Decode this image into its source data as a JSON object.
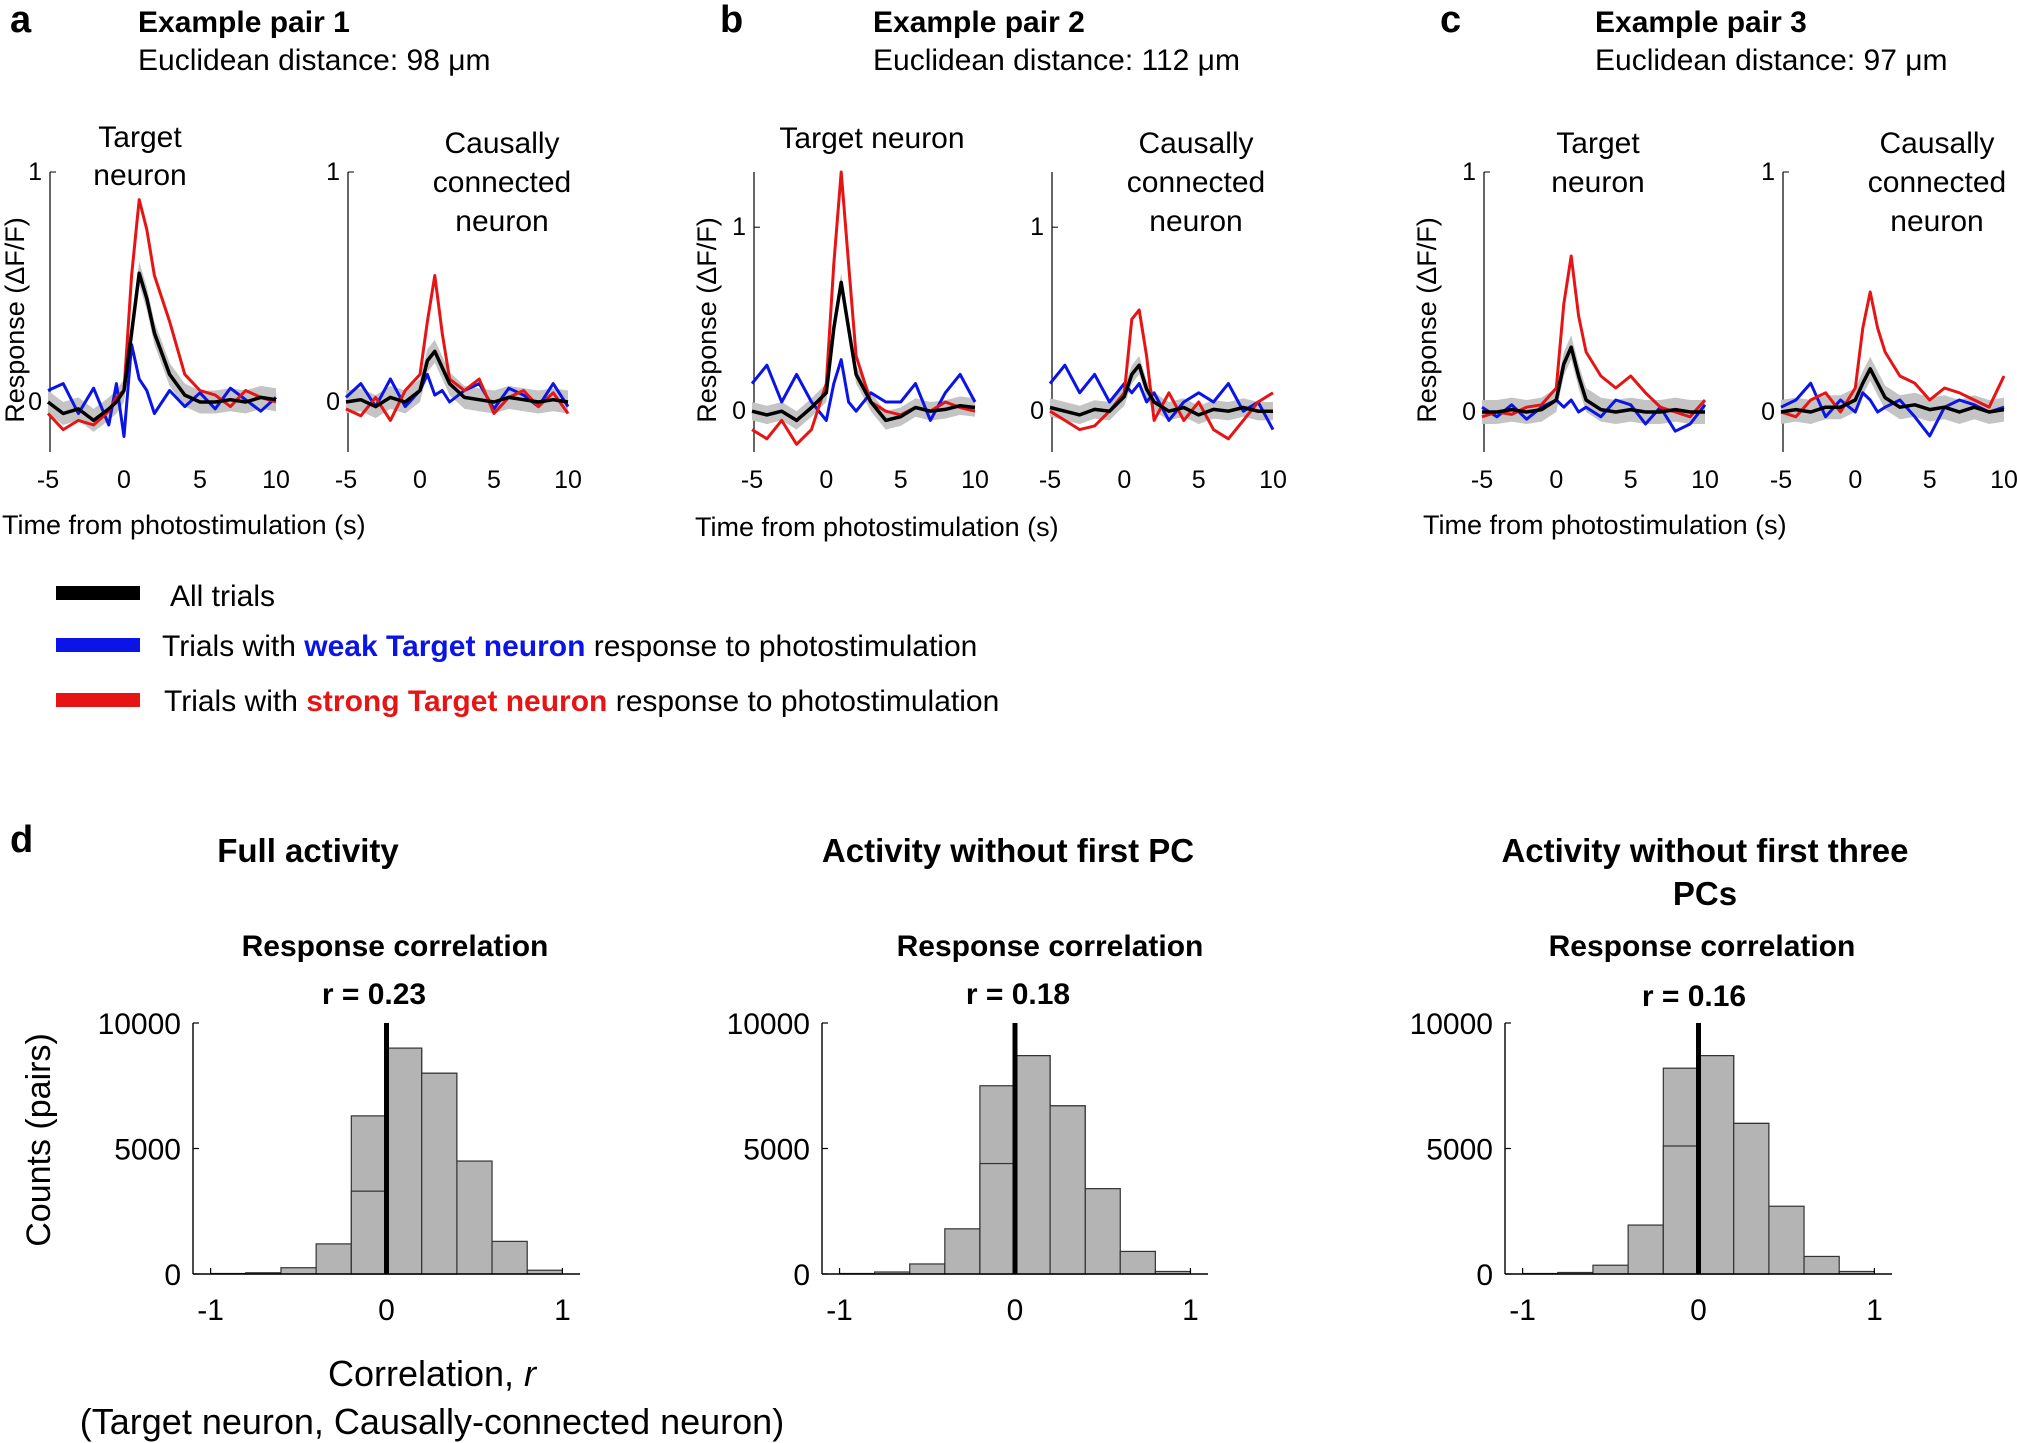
{
  "colors": {
    "all": "#000000",
    "weak": "#0a14e6",
    "strong": "#e61414",
    "band": "#c4c4c4",
    "bar": "#b4b4b4"
  },
  "panels": [
    {
      "label": "a",
      "title": "Example pair 1",
      "distance": "Euclidean  distance: 98 μm",
      "target_title": [
        "Target",
        "neuron"
      ],
      "causal_title": [
        "Causally",
        "connected",
        "neuron"
      ]
    },
    {
      "label": "b",
      "title": "Example pair 2",
      "distance": "Euclidean  distance: 112 μm",
      "target_title": [
        "Target neuron"
      ],
      "causal_title": [
        "Causally",
        "connected",
        "neuron"
      ]
    },
    {
      "label": "c",
      "title": "Example pair 3",
      "distance": "Euclidean  distance: 97 μm",
      "target_title": [
        "Target",
        "neuron"
      ],
      "causal_title": [
        "Causally",
        "connected",
        "neuron"
      ]
    }
  ],
  "trace_axes": {
    "ylabel": "Response (ΔF/F)",
    "xlabel": "Time from photostimulation (s)",
    "x_ticks": [
      "-5",
      "0",
      "5",
      "10"
    ],
    "xlim": [
      -5,
      10
    ]
  },
  "legend": {
    "all": "All trials",
    "weak_pre": "Trials with ",
    "weak_hl": "weak Target neuron",
    "weak_post": " response to photostimulation",
    "strong_pre": "Trials with ",
    "strong_hl": "strong Target neuron",
    "strong_post": " response to photostimulation"
  },
  "panel_d": {
    "label": "d",
    "ylabel": "Counts (pairs)",
    "xlabel_line1": "Correlation, ",
    "xlabel_r": "r",
    "xlabel_line2": "(Target neuron, Causally-connected neuron)"
  },
  "chart_data": [
    {
      "type": "line",
      "panel": "a",
      "subplot": "Target neuron",
      "ylim": [
        -0.2,
        1.0
      ],
      "y_ticks": [
        "0",
        "1"
      ],
      "series": [
        {
          "name": "All trials",
          "x": [
            -5,
            -4,
            -3,
            -2,
            -1,
            -0.5,
            0,
            0.5,
            1,
            1.5,
            2,
            3,
            4,
            5,
            6,
            7,
            8,
            9,
            10
          ],
          "y": [
            0,
            -0.05,
            -0.03,
            -0.08,
            -0.03,
            0,
            0.05,
            0.3,
            0.56,
            0.45,
            0.3,
            0.12,
            0.03,
            0,
            0,
            0.01,
            0,
            0.02,
            0.01
          ]
        },
        {
          "name": "Weak trials",
          "x": [
            -5,
            -4,
            -3,
            -2,
            -1,
            -0.5,
            0,
            0.5,
            1,
            1.5,
            2,
            3,
            4,
            5,
            6,
            7,
            8,
            9,
            10
          ],
          "y": [
            0.05,
            0.08,
            -0.05,
            0.06,
            -0.1,
            0.08,
            -0.15,
            0.25,
            0.1,
            0.05,
            -0.05,
            0.05,
            -0.02,
            0.04,
            -0.03,
            0.06,
            0.01,
            -0.04,
            0.02
          ]
        },
        {
          "name": "Strong trials",
          "x": [
            -5,
            -4,
            -3,
            -2,
            -1,
            -0.5,
            0,
            0.5,
            1,
            1.5,
            2,
            3,
            4,
            5,
            6,
            7,
            8,
            9,
            10
          ],
          "y": [
            -0.05,
            -0.12,
            -0.08,
            -0.1,
            -0.04,
            0.02,
            0.05,
            0.55,
            0.88,
            0.75,
            0.55,
            0.35,
            0.12,
            0.05,
            0.03,
            -0.02,
            0.05,
            0.02,
            0
          ]
        }
      ]
    },
    {
      "type": "line",
      "panel": "a",
      "subplot": "Causally connected neuron",
      "ylim": [
        -0.2,
        1.0
      ],
      "y_ticks": [
        "0",
        "1"
      ],
      "series": [
        {
          "name": "All trials",
          "x": [
            -5,
            -4,
            -3,
            -2,
            -1,
            0,
            0.5,
            1,
            1.5,
            2,
            3,
            4,
            5,
            6,
            7,
            8,
            9,
            10
          ],
          "y": [
            0,
            0.01,
            -0.02,
            0.02,
            0,
            0.05,
            0.18,
            0.22,
            0.15,
            0.08,
            0.02,
            0.01,
            0,
            0.02,
            0.01,
            0,
            0.01,
            0
          ]
        },
        {
          "name": "Weak trials",
          "x": [
            -5,
            -4,
            -3,
            -2,
            -1,
            0,
            0.5,
            1,
            1.5,
            2,
            3,
            4,
            5,
            6,
            7,
            8,
            9,
            10
          ],
          "y": [
            0.02,
            0.08,
            -0.02,
            0.1,
            -0.02,
            0.05,
            0.12,
            0.03,
            0.05,
            0,
            0.05,
            0.08,
            -0.03,
            0.06,
            0.03,
            -0.02,
            0.08,
            -0.02
          ]
        },
        {
          "name": "Strong trials",
          "x": [
            -5,
            -4,
            -3,
            -2,
            -1,
            0,
            0.5,
            1,
            1.5,
            2,
            3,
            4,
            5,
            6,
            7,
            8,
            9,
            10
          ],
          "y": [
            -0.03,
            -0.06,
            0.02,
            -0.08,
            0.05,
            0.12,
            0.35,
            0.55,
            0.3,
            0.1,
            0.05,
            0.1,
            -0.05,
            0.02,
            0.05,
            -0.02,
            0.04,
            -0.05
          ]
        }
      ]
    },
    {
      "type": "line",
      "panel": "b",
      "subplot": "Target neuron",
      "ylim": [
        -0.2,
        1.3
      ],
      "y_ticks": [
        "0",
        "1"
      ],
      "series": [
        {
          "name": "All trials",
          "x": [
            -5,
            -4,
            -3,
            -2,
            -1,
            0,
            0.5,
            1,
            1.5,
            2,
            3,
            4,
            5,
            6,
            7,
            8,
            9,
            10
          ],
          "y": [
            0,
            -0.02,
            0,
            -0.05,
            0.02,
            0.1,
            0.45,
            0.7,
            0.45,
            0.2,
            0.05,
            -0.05,
            -0.03,
            0.02,
            0,
            0.01,
            0.03,
            0.02
          ]
        },
        {
          "name": "Weak trials",
          "x": [
            -5,
            -4,
            -3,
            -2,
            -1,
            0,
            0.5,
            1,
            1.5,
            2,
            3,
            4,
            5,
            6,
            7,
            8,
            9,
            10
          ],
          "y": [
            0.15,
            0.25,
            0.05,
            0.2,
            0.05,
            -0.05,
            0.15,
            0.28,
            0.05,
            0,
            0.1,
            0.05,
            0.05,
            0.15,
            -0.05,
            0.1,
            0.2,
            0.05
          ]
        },
        {
          "name": "Strong trials",
          "x": [
            -5,
            -4,
            -3,
            -2,
            -1,
            0,
            0.5,
            1,
            1.5,
            2,
            3,
            4,
            5,
            6,
            7,
            8,
            9,
            10
          ],
          "y": [
            -0.1,
            -0.15,
            -0.05,
            -0.18,
            -0.1,
            0.15,
            0.8,
            1.3,
            0.8,
            0.3,
            0.05,
            0,
            -0.02,
            0.02,
            0,
            0.05,
            0.02,
            0
          ]
        }
      ]
    },
    {
      "type": "line",
      "panel": "b",
      "subplot": "Causally connected neuron",
      "ylim": [
        -0.2,
        1.3
      ],
      "y_ticks": [
        "0",
        "1"
      ],
      "series": [
        {
          "name": "All trials",
          "x": [
            -5,
            -4,
            -3,
            -2,
            -1,
            0,
            0.5,
            1,
            1.5,
            2,
            3,
            4,
            5,
            6,
            7,
            8,
            9,
            10
          ],
          "y": [
            0.02,
            0,
            -0.02,
            0.01,
            0,
            0.08,
            0.2,
            0.25,
            0.12,
            0.05,
            0,
            0.02,
            -0.02,
            0.01,
            0,
            0.02,
            0,
            0
          ]
        },
        {
          "name": "Weak trials",
          "x": [
            -5,
            -4,
            -3,
            -2,
            -1,
            0,
            0.5,
            1,
            1.5,
            2,
            3,
            4,
            5,
            6,
            7,
            8,
            9,
            10
          ],
          "y": [
            0.15,
            0.25,
            0.1,
            0.2,
            0.05,
            0.15,
            0.1,
            0.15,
            0.05,
            0.1,
            -0.05,
            0.05,
            0.1,
            0.05,
            0.15,
            0,
            0.05,
            -0.1
          ]
        },
        {
          "name": "Strong trials",
          "x": [
            -5,
            -4,
            -3,
            -2,
            -1,
            0,
            0.5,
            1,
            1.5,
            2,
            3,
            4,
            5,
            6,
            7,
            8,
            9,
            10
          ],
          "y": [
            0,
            -0.05,
            -0.1,
            -0.08,
            0,
            0.1,
            0.5,
            0.55,
            0.3,
            -0.05,
            0.1,
            -0.05,
            0.05,
            -0.1,
            -0.15,
            -0.05,
            0.05,
            0.1
          ]
        }
      ]
    },
    {
      "type": "line",
      "panel": "c",
      "subplot": "Target neuron",
      "ylim": [
        -0.15,
        1.0
      ],
      "y_ticks": [
        "0",
        "1"
      ],
      "series": [
        {
          "name": "All trials",
          "x": [
            -5,
            -4,
            -3,
            -2,
            -1,
            0,
            0.5,
            1,
            1.5,
            2,
            3,
            4,
            5,
            6,
            7,
            8,
            9,
            10
          ],
          "y": [
            0,
            0,
            0.01,
            0,
            0.01,
            0.05,
            0.2,
            0.27,
            0.15,
            0.05,
            0.01,
            0,
            0.01,
            0,
            0,
            0.01,
            0,
            0
          ]
        },
        {
          "name": "Weak trials",
          "x": [
            -5,
            -4,
            -3,
            -2,
            -1,
            0,
            0.5,
            1,
            1.5,
            2,
            3,
            4,
            5,
            6,
            7,
            8,
            9,
            10
          ],
          "y": [
            0.02,
            -0.02,
            0.03,
            -0.03,
            0.02,
            0.05,
            0.02,
            0.05,
            0,
            0.02,
            -0.02,
            0.05,
            0.03,
            -0.05,
            0.02,
            -0.08,
            -0.05,
            0.03
          ]
        },
        {
          "name": "Strong trials",
          "x": [
            -5,
            -4,
            -3,
            -2,
            -1,
            0,
            0.5,
            1,
            1.5,
            2,
            3,
            4,
            5,
            6,
            7,
            8,
            9,
            10
          ],
          "y": [
            -0.02,
            0,
            -0.01,
            0.02,
            0.03,
            0.1,
            0.45,
            0.65,
            0.4,
            0.25,
            0.15,
            0.1,
            0.15,
            0.08,
            0.02,
            0,
            -0.02,
            0.05
          ]
        }
      ]
    },
    {
      "type": "line",
      "panel": "c",
      "subplot": "Causally connected neuron",
      "ylim": [
        -0.15,
        1.0
      ],
      "y_ticks": [
        "0",
        "1"
      ],
      "series": [
        {
          "name": "All trials",
          "x": [
            -5,
            -4,
            -3,
            -2,
            -1,
            0,
            0.5,
            1,
            1.5,
            2,
            3,
            4,
            5,
            6,
            7,
            8,
            9,
            10
          ],
          "y": [
            0,
            0.01,
            0,
            0.02,
            0.02,
            0.05,
            0.12,
            0.18,
            0.12,
            0.06,
            0.02,
            0.03,
            0.01,
            0.02,
            0,
            0.02,
            0,
            0.01
          ]
        },
        {
          "name": "Weak trials",
          "x": [
            -5,
            -4,
            -3,
            -2,
            -1,
            0,
            0.5,
            1,
            1.5,
            2,
            3,
            4,
            5,
            6,
            7,
            8,
            9,
            10
          ],
          "y": [
            0.02,
            0.05,
            0.12,
            -0.02,
            0.05,
            0,
            0.08,
            0.05,
            0,
            0.02,
            0.05,
            -0.02,
            -0.1,
            0.02,
            0.05,
            0.03,
            0,
            0.02
          ]
        },
        {
          "name": "Strong trials",
          "x": [
            -5,
            -4,
            -3,
            -2,
            -1,
            0,
            0.5,
            1,
            1.5,
            2,
            3,
            4,
            5,
            6,
            7,
            8,
            9,
            10
          ],
          "y": [
            0,
            -0.02,
            0.05,
            0.08,
            0,
            0.1,
            0.35,
            0.5,
            0.35,
            0.25,
            0.15,
            0.12,
            0.05,
            0.1,
            0.08,
            0.05,
            0.02,
            0.15
          ]
        }
      ]
    },
    {
      "type": "bar",
      "panel": "d",
      "title": "Full activity",
      "subtitle": "Response correlation",
      "annotation": "r = 0.23",
      "bin_edges": [
        -1.0,
        -0.8,
        -0.6,
        -0.4,
        -0.2,
        0.0,
        0.2,
        0.4,
        0.6,
        0.8,
        1.0
      ],
      "bin_centers": [
        -0.9,
        -0.7,
        -0.5,
        -0.3,
        -0.1,
        0.1,
        0.3,
        0.5,
        0.7,
        0.9
      ],
      "values": [
        20,
        50,
        250,
        1200,
        3300,
        9000,
        8000,
        4500,
        1300,
        150
      ],
      "extra_bar": {
        "x_center": -0.1,
        "value": 6300
      },
      "marker_x": 0.0,
      "xlim": [
        -1.1,
        1.1
      ],
      "ylim": [
        0,
        10000
      ],
      "x_ticks": [
        "-1",
        "0",
        "1"
      ],
      "y_ticks": [
        "0",
        "5000",
        "10000"
      ]
    },
    {
      "type": "bar",
      "panel": "d",
      "title": "Activity without first PC",
      "subtitle": "Response correlation",
      "annotation": "r = 0.18",
      "bin_edges": [
        -1.0,
        -0.8,
        -0.6,
        -0.4,
        -0.2,
        0.0,
        0.2,
        0.4,
        0.6,
        0.8,
        1.0
      ],
      "bin_centers": [
        -0.9,
        -0.7,
        -0.5,
        -0.3,
        -0.1,
        0.1,
        0.3,
        0.5,
        0.7,
        0.9
      ],
      "values": [
        20,
        80,
        400,
        1800,
        4400,
        8700,
        6700,
        3400,
        900,
        100
      ],
      "extra_bar": {
        "x_center": -0.1,
        "value": 7500
      },
      "marker_x": 0.0,
      "xlim": [
        -1.1,
        1.1
      ],
      "ylim": [
        0,
        10000
      ],
      "x_ticks": [
        "-1",
        "0",
        "1"
      ],
      "y_ticks": [
        "0",
        "5000",
        "10000"
      ]
    },
    {
      "type": "bar",
      "panel": "d",
      "title": "Activity without first three PCs",
      "title_lines": [
        "Activity without first three",
        "PCs"
      ],
      "subtitle": "Response correlation",
      "annotation": "r = 0.16",
      "bin_edges": [
        -1.0,
        -0.8,
        -0.6,
        -0.4,
        -0.2,
        0.0,
        0.2,
        0.4,
        0.6,
        0.8,
        1.0
      ],
      "bin_centers": [
        -0.9,
        -0.7,
        -0.5,
        -0.3,
        -0.1,
        0.1,
        0.3,
        0.5,
        0.7,
        0.9
      ],
      "values": [
        20,
        60,
        350,
        1950,
        5100,
        8700,
        6000,
        2700,
        700,
        100
      ],
      "extra_bar": {
        "x_center": -0.1,
        "value": 8200
      },
      "marker_x": 0.0,
      "xlim": [
        -1.1,
        1.1
      ],
      "ylim": [
        0,
        10000
      ],
      "x_ticks": [
        "-1",
        "0",
        "1"
      ],
      "y_ticks": [
        "0",
        "5000",
        "10000"
      ]
    }
  ]
}
